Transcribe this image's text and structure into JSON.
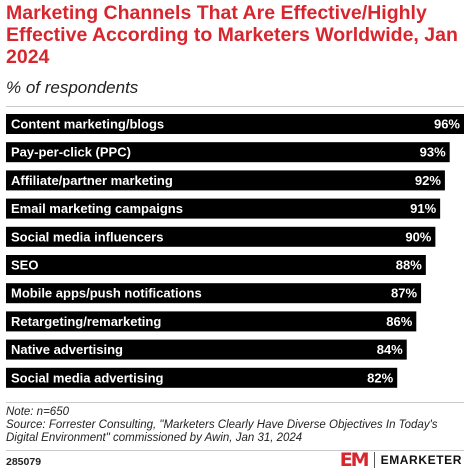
{
  "header": {
    "title": "Marketing Channels That Are Effective/Highly Effective According to Marketers Worldwide, Jan 2024",
    "subtitle": "% of respondents"
  },
  "chart_data": {
    "type": "bar",
    "orientation": "horizontal",
    "categories": [
      "Content marketing/blogs",
      "Pay-per-click (PPC)",
      "Affiliate/partner marketing",
      "Email marketing campaigns",
      "Social media influencers",
      "SEO",
      "Mobile apps/push notifications",
      "Retargeting/remarketing",
      "Native advertising",
      "Social media advertising"
    ],
    "values": [
      96,
      93,
      92,
      91,
      90,
      88,
      87,
      86,
      84,
      82
    ],
    "value_labels": [
      "96%",
      "93%",
      "92%",
      "91%",
      "90%",
      "88%",
      "87%",
      "86%",
      "84%",
      "82%"
    ],
    "bar_color": "#000000",
    "xlim": [
      0,
      96
    ],
    "grid": false
  },
  "footer": {
    "note": "Note: n=650",
    "source": "Source: Forrester Consulting, \"Marketers Clearly Have Diverse Objectives In Today's Digital Environment\" commissioned by Awin, Jan 31, 2024",
    "id": "285079",
    "brand_mark": "EM",
    "brand_name": "EMARKETER"
  }
}
